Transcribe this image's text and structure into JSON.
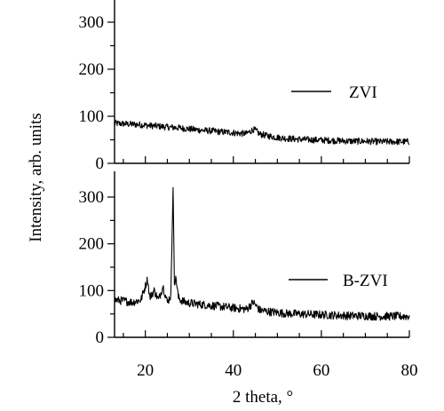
{
  "chart_data": [
    {
      "type": "line",
      "panel": "upper",
      "xlabel": "2 theta, °",
      "ylabel": "Intensity, arb. units",
      "xlim": [
        13,
        80
      ],
      "ylim": [
        0,
        350
      ],
      "x_ticks": [
        20,
        40,
        60,
        80
      ],
      "y_ticks": [
        0,
        100,
        200,
        300
      ],
      "y_tick_labels": [
        "0",
        "100",
        "200",
        "300"
      ],
      "legend_position": "right",
      "noise_amplitude": 7,
      "series": [
        {
          "name": "ZVI",
          "color": "#000000",
          "x": [
            13,
            15,
            17,
            19,
            21,
            23,
            25,
            27,
            29,
            31,
            33,
            35,
            37,
            39,
            41,
            43,
            44.5,
            45,
            46,
            48,
            50,
            52,
            55,
            58,
            61,
            64,
            67,
            70,
            73,
            76,
            80
          ],
          "y": [
            85,
            84,
            83,
            82,
            80,
            79,
            77,
            76,
            74,
            72,
            70,
            69,
            67,
            66,
            64,
            63,
            72,
            70,
            62,
            58,
            55,
            53,
            51,
            50,
            49,
            48,
            47,
            47,
            46,
            46,
            46
          ]
        }
      ]
    },
    {
      "type": "line",
      "panel": "lower",
      "xlabel": "2 theta, °",
      "ylabel": "Intensity, arb. units",
      "xlim": [
        13,
        80
      ],
      "ylim": [
        0,
        350
      ],
      "x_ticks": [
        20,
        40,
        60,
        80
      ],
      "x_tick_labels": [
        "20",
        "40",
        "60",
        "80"
      ],
      "y_ticks": [
        0,
        100,
        200,
        300
      ],
      "y_tick_labels": [
        "0",
        "100",
        "200",
        "300"
      ],
      "legend_position": "right",
      "noise_amplitude": 9,
      "series": [
        {
          "name": "B-ZVI",
          "color": "#000000",
          "x": [
            13,
            15,
            17,
            19,
            20.5,
            21,
            22,
            23,
            24,
            25,
            25.8,
            26.3,
            26.6,
            27,
            27.5,
            28,
            29,
            31,
            33,
            35,
            37,
            39,
            41,
            43,
            44.5,
            46,
            48,
            50,
            52,
            55,
            58,
            61,
            64,
            67,
            70,
            73,
            76,
            80
          ],
          "y": [
            80,
            78,
            75,
            80,
            125,
            85,
            100,
            80,
            110,
            75,
            90,
            320,
            120,
            125,
            85,
            80,
            75,
            72,
            70,
            68,
            66,
            64,
            62,
            60,
            75,
            58,
            55,
            53,
            51,
            50,
            49,
            48,
            47,
            46,
            46,
            45,
            45,
            45
          ]
        }
      ]
    }
  ]
}
